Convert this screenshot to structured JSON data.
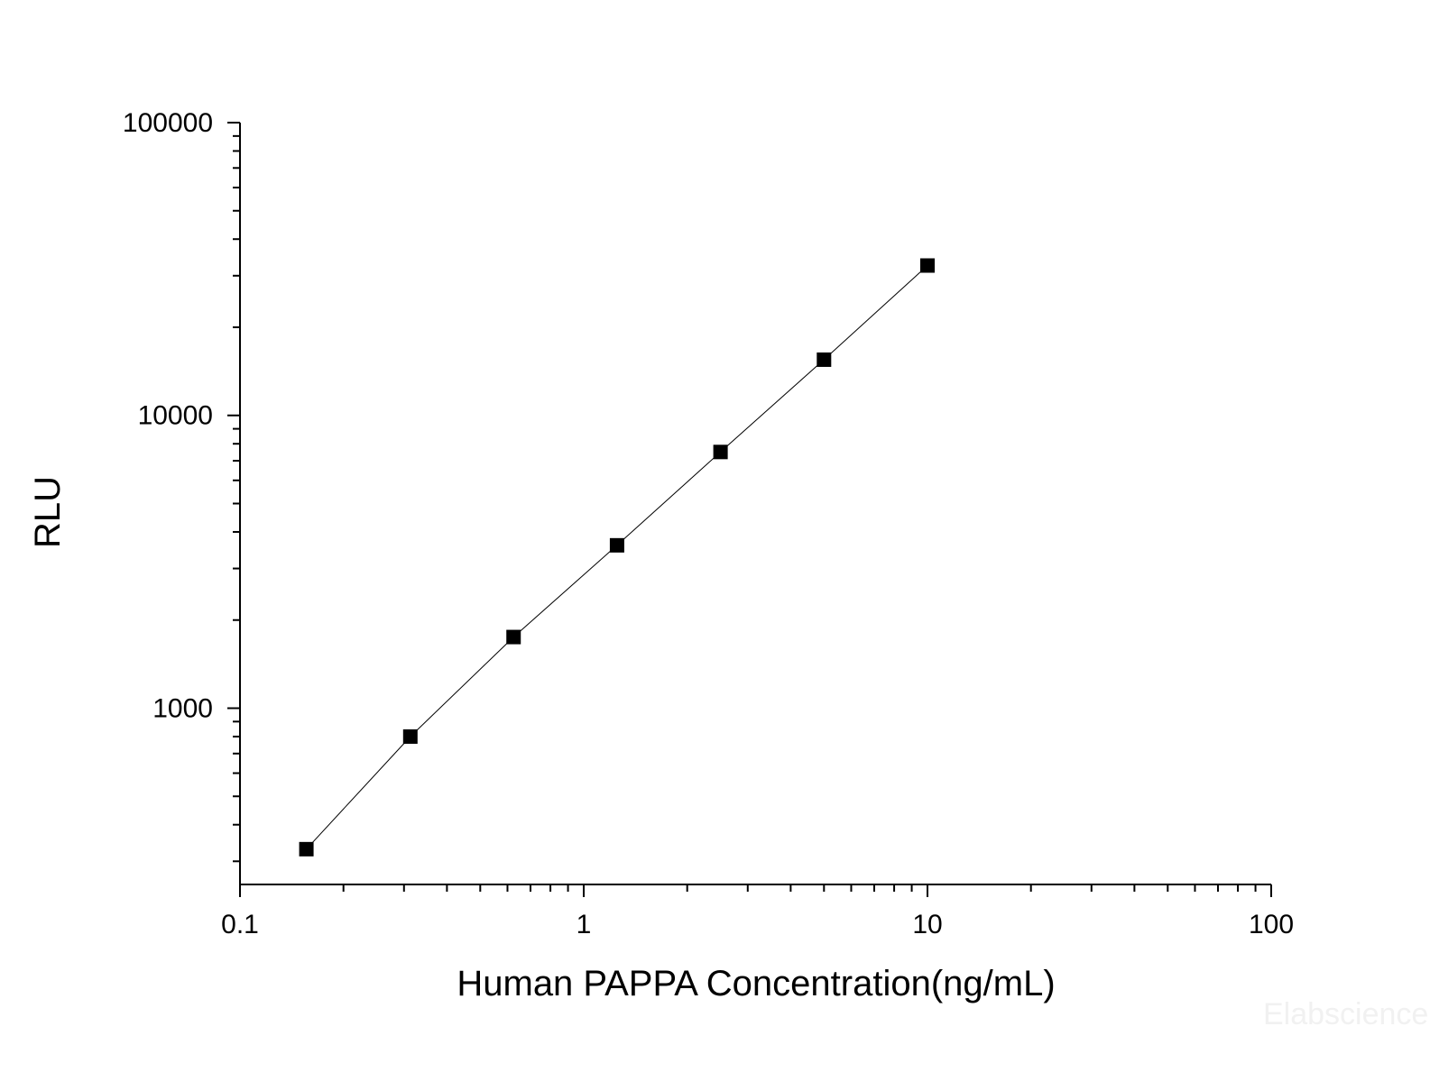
{
  "chart_data": {
    "type": "scatter",
    "title": "",
    "xlabel": "Human PAPPA Concentration(ng/mL)",
    "ylabel": "RLU",
    "x_scale": "log",
    "y_scale": "log",
    "xlim": [
      0.1,
      100
    ],
    "ylim": [
      250,
      100000
    ],
    "x_ticks": [
      "0.1",
      "1",
      "10",
      "100"
    ],
    "y_ticks": [
      "1000",
      "10000",
      "100000"
    ],
    "grid": false,
    "legend": "none",
    "fit_line": true,
    "colors": {
      "marker": "#000000",
      "line": "#000000",
      "axis": "#000000"
    },
    "series": [
      {
        "x": [
          0.156,
          0.313,
          0.625,
          1.25,
          2.5,
          5,
          10
        ],
        "y": [
          330,
          800,
          1750,
          3600,
          7500,
          15500,
          32500
        ]
      }
    ]
  },
  "watermark": "Elabscience"
}
